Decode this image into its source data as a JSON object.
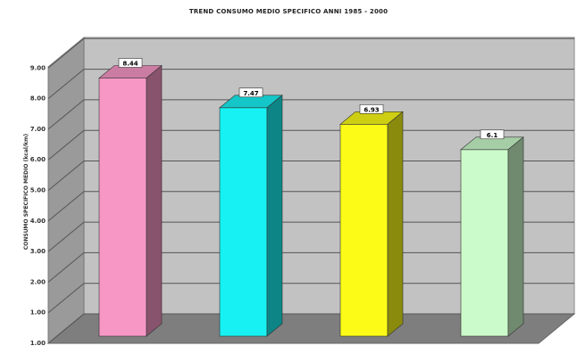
{
  "chart_data": {
    "type": "bar",
    "title": "TREND CONSUMO MEDIO SPECIFICO ANNI 1985 - 2000",
    "ylabel": "CONSUMO SPECIFICO MEDIO (kcal/km)",
    "xlabel": "",
    "categories": [
      "",
      "",
      "",
      ""
    ],
    "values": [
      8.44,
      7.47,
      6.93,
      6.1
    ],
    "data_labels": [
      "8.44",
      "7.47",
      "6.93",
      "6.1"
    ],
    "ylim": [
      0,
      9
    ],
    "yticks": [
      "1.00",
      "1.00",
      "2.00",
      "3.00",
      "4.00",
      "5.00",
      "6.00",
      "7.00",
      "8.00",
      "9.00"
    ],
    "colors": [
      "#f797c5",
      "#18f1f3",
      "#fbfb17",
      "#cbfbca"
    ],
    "style": "3d-bar",
    "grid": true,
    "legend": "none"
  }
}
